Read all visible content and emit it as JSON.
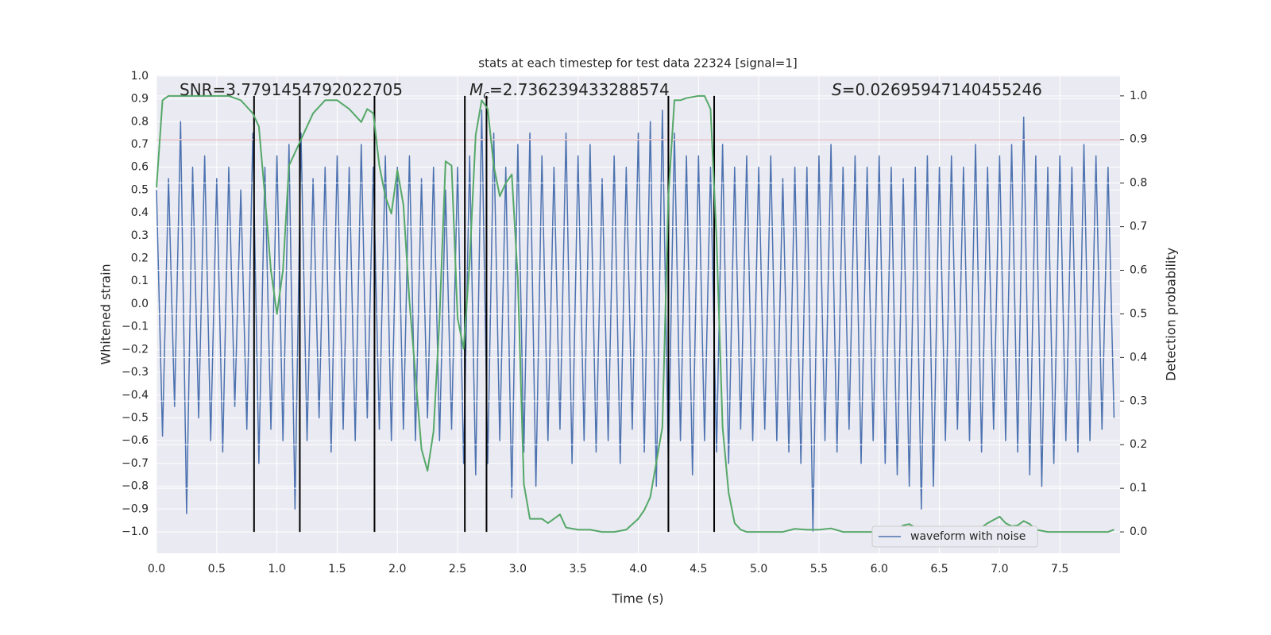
{
  "chart_data": {
    "type": "line",
    "title": "stats at each timestep for test data 22324 [signal=1]",
    "xlabel": "Time (s)",
    "ylabel": "Whitened strain",
    "y2label": "Detection probability",
    "annotations": [
      {
        "text": "SNR=3.7791454792022705"
      },
      {
        "symbol": "M",
        "subscript": "c",
        "text": "=2.736239433288574"
      },
      {
        "symbol": "S",
        "text": "=0.02695947140455246"
      }
    ],
    "xlim": [
      0,
      8.0
    ],
    "ylim": [
      -1.094,
      1.003
    ],
    "y2lim": [
      -0.049,
      1.047
    ],
    "grid": true,
    "xticks": [
      {
        "value": 0,
        "label": "0.0"
      },
      0.5,
      {
        "value": 1,
        "label": "1.0"
      },
      1.5,
      {
        "value": 2,
        "label": "2.0"
      },
      2.5,
      {
        "value": 3,
        "label": "3.0"
      },
      3.5,
      {
        "value": 4,
        "label": "4.0"
      },
      4.5,
      {
        "value": 5,
        "label": "5.0"
      },
      5.5,
      {
        "value": 6,
        "label": "6.0"
      },
      6.5,
      {
        "value": 7,
        "label": "7.0"
      },
      7.5
    ],
    "yticks": [
      {
        "value": -1,
        "label": "−1.0"
      },
      {
        "value": -0.9,
        "label": "−0.9"
      },
      {
        "value": -0.8,
        "label": "−0.8"
      },
      {
        "value": -0.7,
        "label": "−0.7"
      },
      {
        "value": -0.6,
        "label": "−0.6"
      },
      {
        "value": -0.5,
        "label": "−0.5"
      },
      {
        "value": -0.4,
        "label": "−0.4"
      },
      {
        "value": -0.3,
        "label": "−0.3"
      },
      {
        "value": -0.2,
        "label": "−0.2"
      },
      {
        "value": -0.1,
        "label": "−0.1"
      },
      {
        "value": 0,
        "label": "0.0"
      },
      0.1,
      0.2,
      0.3,
      0.4,
      0.5,
      0.6,
      0.7,
      0.8,
      0.9,
      {
        "value": 1,
        "label": "1.0"
      }
    ],
    "y2ticks": [
      {
        "value": 0,
        "label": "0.0"
      },
      0.1,
      0.2,
      0.3,
      0.4,
      0.5,
      0.6,
      0.7,
      0.8,
      0.9,
      {
        "value": 1,
        "label": "1.0"
      }
    ],
    "legend": "lower right",
    "series": [
      {
        "name": "waveform with noise",
        "color": "#4c72b0",
        "x": [
          0,
          0.05,
          0.1,
          0.15,
          0.2,
          0.25,
          0.3,
          0.35,
          0.4,
          0.45,
          0.5,
          0.55,
          0.6,
          0.65,
          0.7,
          0.75,
          0.8,
          0.85,
          0.9,
          0.95,
          1,
          1.05,
          1.1,
          1.15,
          1.2,
          1.25,
          1.3,
          1.35,
          1.4,
          1.45,
          1.5,
          1.55,
          1.6,
          1.65,
          1.7,
          1.75,
          1.8,
          1.85,
          1.9,
          1.95,
          2,
          2.05,
          2.1,
          2.15,
          2.2,
          2.25,
          2.3,
          2.35,
          2.4,
          2.45,
          2.5,
          2.55,
          2.6,
          2.65,
          2.7,
          2.75,
          2.8,
          2.85,
          2.9,
          2.95,
          3,
          3.05,
          3.1,
          3.15,
          3.2,
          3.25,
          3.3,
          3.35,
          3.4,
          3.45,
          3.5,
          3.55,
          3.6,
          3.65,
          3.7,
          3.75,
          3.8,
          3.85,
          3.9,
          3.95,
          4,
          4.05,
          4.1,
          4.15,
          4.2,
          4.25,
          4.3,
          4.35,
          4.4,
          4.45,
          4.5,
          4.55,
          4.6,
          4.65,
          4.7,
          4.75,
          4.8,
          4.85,
          4.9,
          4.95,
          5,
          5.05,
          5.1,
          5.15,
          5.2,
          5.25,
          5.3,
          5.35,
          5.4,
          5.45,
          5.5,
          5.55,
          5.6,
          5.65,
          5.7,
          5.75,
          5.8,
          5.85,
          5.9,
          5.95,
          6,
          6.05,
          6.1,
          6.15,
          6.2,
          6.25,
          6.3,
          6.35,
          6.4,
          6.45,
          6.5,
          6.55,
          6.6,
          6.65,
          6.7,
          6.75,
          6.8,
          6.85,
          6.9,
          6.95,
          7,
          7.05,
          7.1,
          7.15,
          7.2,
          7.25,
          7.3,
          7.35,
          7.4,
          7.45,
          7.5,
          7.55,
          7.6,
          7.65,
          7.7,
          7.75,
          7.8,
          7.85,
          7.9,
          7.95
        ],
        "values": [
          0.5,
          -0.58,
          0.55,
          -0.45,
          0.8,
          -0.92,
          0.6,
          -0.5,
          0.65,
          -0.6,
          0.55,
          -0.65,
          0.6,
          -0.45,
          0.5,
          -0.55,
          0.75,
          -0.7,
          0.6,
          -0.55,
          0.65,
          -0.6,
          0.7,
          -0.9,
          0.75,
          -0.6,
          0.55,
          -0.5,
          0.6,
          -0.65,
          0.65,
          -0.55,
          0.6,
          -0.6,
          0.7,
          -0.5,
          0.6,
          -0.55,
          0.65,
          -0.6,
          0.6,
          -0.55,
          0.65,
          -0.6,
          0.55,
          -0.5,
          0.6,
          -0.6,
          0.5,
          -0.55,
          0.6,
          -0.7,
          0.65,
          -0.75,
          0.85,
          -0.7,
          0.75,
          -0.6,
          0.6,
          -0.85,
          0.7,
          -0.65,
          0.75,
          -0.8,
          0.65,
          -0.6,
          0.6,
          -0.55,
          0.75,
          -0.7,
          0.65,
          -0.6,
          0.7,
          -0.65,
          0.55,
          -0.6,
          0.65,
          -0.7,
          0.6,
          -0.55,
          0.75,
          -0.65,
          0.8,
          -0.8,
          0.85,
          -0.7,
          0.75,
          -0.6,
          0.65,
          -0.75,
          0.65,
          -0.6,
          0.6,
          -0.65,
          0.7,
          -0.7,
          0.6,
          -0.55,
          0.65,
          -0.6,
          0.6,
          -0.55,
          0.65,
          -0.6,
          0.55,
          -0.65,
          0.6,
          -0.7,
          0.6,
          -1.0,
          0.65,
          -0.6,
          0.7,
          -0.65,
          0.6,
          -0.55,
          0.65,
          -0.7,
          0.6,
          -0.6,
          0.65,
          -0.7,
          0.6,
          -0.75,
          0.55,
          -0.8,
          0.6,
          -0.9,
          0.65,
          -0.8,
          0.6,
          -0.6,
          0.65,
          -0.55,
          0.6,
          -0.6,
          0.7,
          -0.65,
          0.6,
          -0.55,
          0.65,
          -0.6,
          0.7,
          -0.65,
          0.82,
          -0.75,
          0.65,
          -0.8,
          0.6,
          -0.7,
          0.65,
          -0.6,
          0.6,
          -0.65,
          0.7,
          -0.6,
          0.65,
          -0.55,
          0.6,
          -0.5
        ]
      },
      {
        "color": "#55a868",
        "axis": "y2",
        "x": [
          0,
          0.05,
          0.1,
          0.2,
          0.3,
          0.4,
          0.5,
          0.6,
          0.7,
          0.8,
          0.85,
          0.9,
          0.95,
          1.0,
          1.05,
          1.1,
          1.2,
          1.3,
          1.4,
          1.5,
          1.6,
          1.7,
          1.75,
          1.8,
          1.85,
          1.9,
          1.95,
          2.0,
          2.05,
          2.1,
          2.2,
          2.25,
          2.3,
          2.35,
          2.4,
          2.45,
          2.5,
          2.55,
          2.6,
          2.65,
          2.7,
          2.75,
          2.8,
          2.85,
          2.9,
          2.95,
          3.0,
          3.05,
          3.1,
          3.2,
          3.25,
          3.3,
          3.35,
          3.4,
          3.5,
          3.6,
          3.7,
          3.8,
          3.9,
          4.0,
          4.05,
          4.1,
          4.15,
          4.2,
          4.25,
          4.3,
          4.35,
          4.4,
          4.5,
          4.55,
          4.6,
          4.65,
          4.7,
          4.75,
          4.8,
          4.85,
          4.9,
          5.0,
          5.1,
          5.2,
          5.3,
          5.4,
          5.5,
          5.6,
          5.7,
          5.8,
          5.9,
          6.0,
          6.1,
          6.2,
          6.25,
          6.3,
          6.4,
          6.5,
          6.6,
          6.7,
          6.8,
          6.9,
          7.0,
          7.05,
          7.1,
          7.15,
          7.2,
          7.25,
          7.3,
          7.4,
          7.5,
          7.6,
          7.7,
          7.8,
          7.9,
          7.95
        ],
        "values": [
          0.79,
          0.99,
          1.0,
          1.0,
          1.0,
          1.0,
          1.0,
          1.0,
          0.99,
          0.96,
          0.93,
          0.77,
          0.6,
          0.5,
          0.6,
          0.84,
          0.9,
          0.96,
          0.99,
          0.99,
          0.97,
          0.94,
          0.97,
          0.96,
          0.84,
          0.77,
          0.73,
          0.83,
          0.75,
          0.53,
          0.19,
          0.14,
          0.23,
          0.49,
          0.85,
          0.84,
          0.49,
          0.42,
          0.62,
          0.91,
          0.99,
          0.97,
          0.84,
          0.77,
          0.8,
          0.82,
          0.58,
          0.11,
          0.03,
          0.03,
          0.02,
          0.03,
          0.04,
          0.01,
          0.005,
          0.005,
          0.0,
          0.0,
          0.005,
          0.03,
          0.05,
          0.08,
          0.16,
          0.24,
          0.77,
          0.99,
          0.99,
          0.995,
          1.0,
          1.0,
          0.97,
          0.67,
          0.24,
          0.09,
          0.02,
          0.005,
          0.0,
          0.0,
          0.0,
          0.0,
          0.007,
          0.005,
          0.005,
          0.008,
          0.0,
          0.0,
          0.0,
          0.0,
          0.0,
          0.015,
          0.018,
          0.01,
          0.0,
          0.0,
          0.0,
          0.0,
          0.0,
          0.02,
          0.035,
          0.02,
          0.013,
          0.015,
          0.025,
          0.018,
          0.005,
          0.0,
          0.0,
          0.0,
          0.0,
          0.0,
          0.0,
          0.005
        ]
      }
    ],
    "vlines": {
      "x": [
        0.81,
        1.19,
        1.81,
        2.56,
        2.74,
        4.25,
        4.63
      ],
      "y2": [
        0,
        1
      ],
      "color": "#000000"
    },
    "hline": {
      "value": 0.9,
      "axis": "y2",
      "color": "#c44e52"
    }
  }
}
